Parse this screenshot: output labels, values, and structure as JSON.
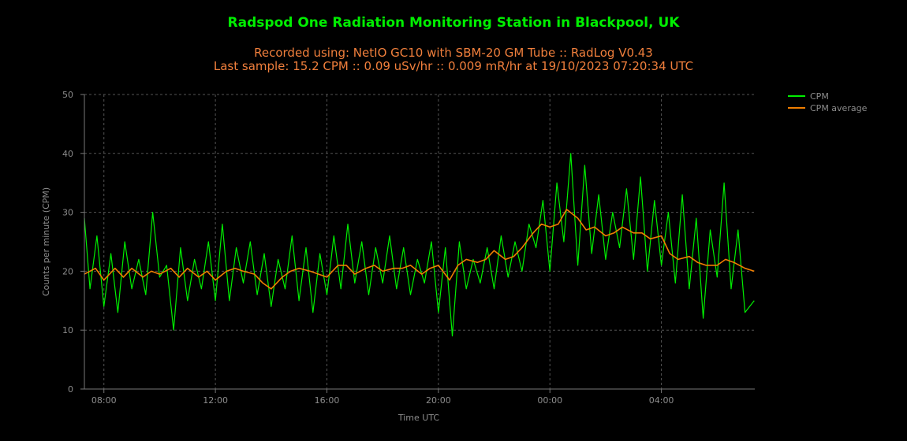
{
  "chart_data": {
    "type": "line",
    "title": "Radspod One Radiation Monitoring Station in Blackpool, UK",
    "subtitle_line1": "Recorded using: NetIO GC10 with SBM-20 GM Tube :: RadLog V0.43",
    "subtitle_line2": "Last sample: 15.2 CPM :: 0.09 uSv/hr :: 0.009 mR/hr at 19/10/2023 07:20:34 UTC",
    "xlabel": "Time UTC",
    "ylabel": "Counts per minute (CPM)",
    "x_unit": "hours (UTC) relative to 00:00 on 19/10/2023",
    "xlim": [
      -16.7,
      7.35
    ],
    "ylim": [
      0,
      50
    ],
    "x_ticks": [
      {
        "value": -16,
        "label": "08:00"
      },
      {
        "value": -12,
        "label": "12:00"
      },
      {
        "value": -8,
        "label": "16:00"
      },
      {
        "value": -4,
        "label": "20:00"
      },
      {
        "value": 0,
        "label": "00:00"
      },
      {
        "value": 4,
        "label": "04:00"
      }
    ],
    "y_ticks": [
      0,
      10,
      20,
      30,
      40,
      50
    ],
    "grid": true,
    "legend_position": "top-right",
    "series": [
      {
        "name": "CPM",
        "color": "#00ee00",
        "x": [
          -16.7,
          -16.5,
          -16.25,
          -16.0,
          -15.75,
          -15.5,
          -15.25,
          -15.0,
          -14.75,
          -14.5,
          -14.25,
          -14.0,
          -13.75,
          -13.5,
          -13.25,
          -13.0,
          -12.75,
          -12.5,
          -12.25,
          -12.0,
          -11.75,
          -11.5,
          -11.25,
          -11.0,
          -10.75,
          -10.5,
          -10.25,
          -10.0,
          -9.75,
          -9.5,
          -9.25,
          -9.0,
          -8.75,
          -8.5,
          -8.25,
          -8.0,
          -7.75,
          -7.5,
          -7.25,
          -7.0,
          -6.75,
          -6.5,
          -6.25,
          -6.0,
          -5.75,
          -5.5,
          -5.25,
          -5.0,
          -4.75,
          -4.5,
          -4.25,
          -4.0,
          -3.75,
          -3.5,
          -3.25,
          -3.0,
          -2.75,
          -2.5,
          -2.25,
          -2.0,
          -1.75,
          -1.5,
          -1.25,
          -1.0,
          -0.75,
          -0.5,
          -0.25,
          0.0,
          0.25,
          0.5,
          0.75,
          1.0,
          1.25,
          1.5,
          1.75,
          2.0,
          2.25,
          2.5,
          2.75,
          3.0,
          3.25,
          3.5,
          3.75,
          4.0,
          4.25,
          4.5,
          4.75,
          5.0,
          5.25,
          5.5,
          5.75,
          6.0,
          6.25,
          6.5,
          6.75,
          7.0,
          7.33
        ],
        "values": [
          29,
          17,
          26,
          14,
          23,
          13,
          25,
          17,
          22,
          16,
          30,
          19,
          21,
          10,
          24,
          15,
          22,
          17,
          25,
          15,
          28,
          15,
          24,
          18,
          25,
          16,
          23,
          14,
          22,
          17,
          26,
          15,
          24,
          13,
          23,
          16,
          26,
          17,
          28,
          18,
          25,
          16,
          24,
          18,
          26,
          17,
          24,
          16,
          22,
          18,
          25,
          13,
          24,
          9,
          25,
          17,
          22,
          18,
          24,
          17,
          26,
          19,
          25,
          20,
          28,
          24,
          32,
          20,
          35,
          25,
          40,
          21,
          38,
          23,
          33,
          22,
          30,
          24,
          34,
          22,
          36,
          20,
          32,
          21,
          30,
          18,
          33,
          17,
          29,
          12,
          27,
          19,
          35,
          17,
          27,
          13,
          15
        ]
      },
      {
        "name": "CPM average",
        "color": "#f07e00",
        "x": [
          -16.7,
          -16.3,
          -16.0,
          -15.6,
          -15.3,
          -15.0,
          -14.6,
          -14.3,
          -14.0,
          -13.6,
          -13.3,
          -13.0,
          -12.6,
          -12.3,
          -12.0,
          -11.6,
          -11.3,
          -11.0,
          -10.6,
          -10.3,
          -10.0,
          -9.6,
          -9.3,
          -9.0,
          -8.6,
          -8.3,
          -8.0,
          -7.6,
          -7.3,
          -7.0,
          -6.6,
          -6.3,
          -6.0,
          -5.6,
          -5.3,
          -5.0,
          -4.6,
          -4.3,
          -4.0,
          -3.6,
          -3.3,
          -3.0,
          -2.6,
          -2.3,
          -2.0,
          -1.6,
          -1.3,
          -1.0,
          -0.6,
          -0.3,
          0.0,
          0.3,
          0.6,
          1.0,
          1.3,
          1.6,
          2.0,
          2.3,
          2.6,
          3.0,
          3.3,
          3.6,
          4.0,
          4.3,
          4.6,
          5.0,
          5.3,
          5.6,
          6.0,
          6.3,
          6.6,
          7.0,
          7.33
        ],
        "values": [
          19.5,
          20.5,
          18.5,
          20.5,
          19.0,
          20.5,
          19.0,
          20.0,
          19.5,
          20.5,
          19.0,
          20.5,
          19.0,
          20.0,
          18.5,
          20.0,
          20.5,
          20.0,
          19.5,
          18.0,
          17.0,
          19.0,
          20.0,
          20.5,
          20.0,
          19.5,
          19.0,
          21.0,
          21.0,
          19.5,
          20.5,
          21.0,
          20.0,
          20.5,
          20.5,
          21.0,
          19.5,
          20.5,
          21.0,
          18.5,
          21.0,
          22.0,
          21.5,
          22.0,
          23.5,
          22.0,
          22.5,
          24.0,
          26.5,
          28.0,
          27.5,
          28.0,
          30.5,
          29.0,
          27.0,
          27.5,
          26.0,
          26.5,
          27.5,
          26.5,
          26.5,
          25.5,
          26.0,
          23.0,
          22.0,
          22.5,
          21.5,
          21.0,
          21.0,
          22.0,
          21.5,
          20.5,
          20.0
        ]
      }
    ],
    "colors": {
      "background": "#000000",
      "title": "#00ee00",
      "subtitle": "#f07f3c",
      "axis_text": "#8c8c8c",
      "grid": "#555555",
      "axis_line": "#777777"
    }
  }
}
